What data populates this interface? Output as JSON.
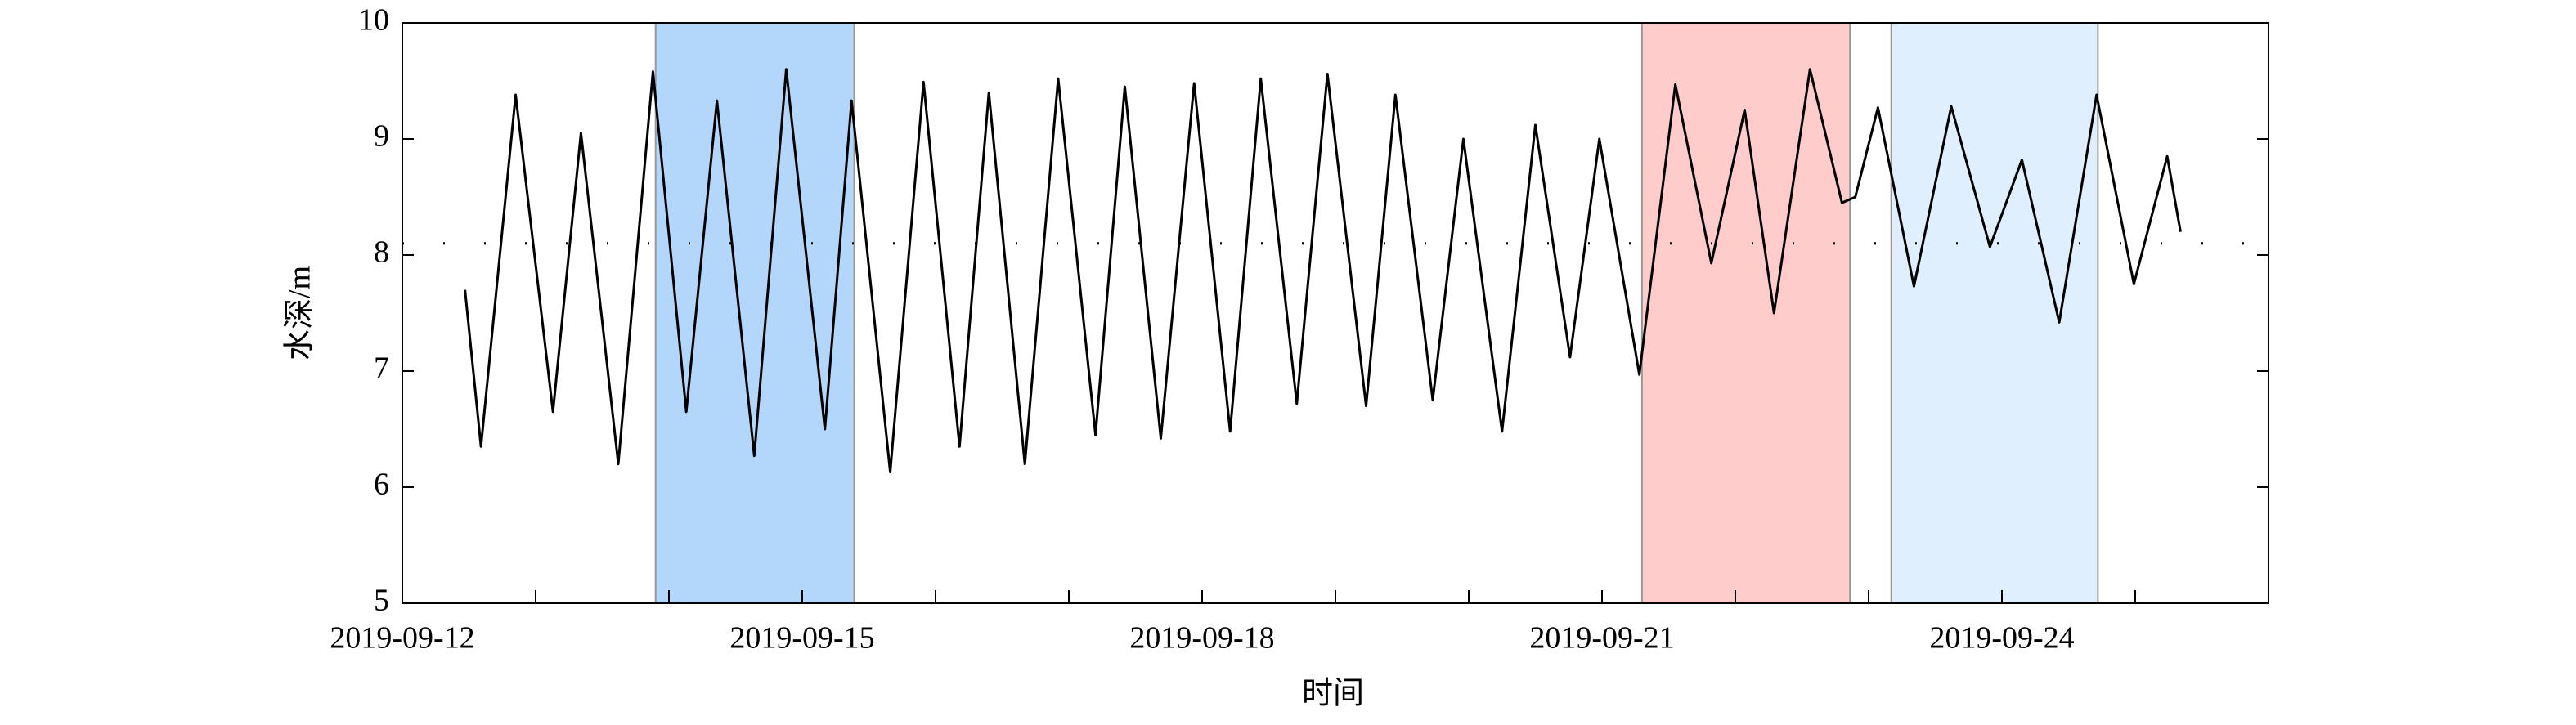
{
  "chart_data": {
    "type": "line",
    "y_label": "水深/m",
    "x_label": "时间",
    "x": [
      0.47,
      0.59,
      0.85,
      1.13,
      1.34,
      1.62,
      1.88,
      2.13,
      2.36,
      2.64,
      2.88,
      3.17,
      3.37,
      3.66,
      3.91,
      4.18,
      4.4,
      4.67,
      4.92,
      5.2,
      5.42,
      5.69,
      5.94,
      6.21,
      6.44,
      6.71,
      6.94,
      7.23,
      7.45,
      7.73,
      7.96,
      8.25,
      8.5,
      8.76,
      8.98,
      9.28,
      9.55,
      9.82,
      10.07,
      10.29,
      10.56,
      10.8,
      10.9,
      11.07,
      11.34,
      11.62,
      11.91,
      12.15,
      12.43,
      12.71,
      12.99,
      13.24,
      13.34
    ],
    "series": [
      {
        "name": "水深",
        "color": "#000000",
        "values": [
          7.7,
          6.35,
          9.38,
          6.65,
          9.05,
          6.2,
          9.58,
          6.65,
          9.33,
          6.27,
          9.6,
          6.5,
          9.33,
          6.13,
          9.49,
          6.35,
          9.4,
          6.2,
          9.52,
          6.45,
          9.45,
          6.42,
          9.48,
          6.48,
          9.52,
          6.72,
          9.56,
          6.7,
          9.38,
          6.75,
          9.0,
          6.48,
          9.12,
          7.12,
          9.0,
          6.97,
          9.47,
          7.93,
          9.25,
          7.5,
          9.6,
          8.45,
          8.5,
          9.27,
          7.73,
          9.28,
          8.07,
          8.82,
          7.42,
          9.38,
          7.75,
          8.85,
          8.2
        ]
      }
    ],
    "xlim": [
      0,
      14
    ],
    "xticks": [
      {
        "value": 0,
        "label": "2019-09-12"
      },
      {
        "value": 3,
        "label": "2019-09-15"
      },
      {
        "value": 6,
        "label": "2019-09-18"
      },
      {
        "value": 9,
        "label": "2019-09-21"
      },
      {
        "value": 12,
        "label": "2019-09-24"
      }
    ],
    "xminorticks": [
      1,
      2,
      4,
      5,
      7,
      8,
      10,
      11,
      13
    ],
    "ylim": [
      5,
      10
    ],
    "yticks": [
      5,
      6,
      7,
      8,
      9,
      10
    ],
    "reference_line": 8.1,
    "shaded_regions": [
      {
        "xmin": 1.9,
        "xmax": 3.39,
        "color": "#b3d7fa"
      },
      {
        "xmin": 9.3,
        "xmax": 10.86,
        "color": "#ffcccc"
      },
      {
        "xmin": 11.17,
        "xmax": 12.72,
        "color": "#e0effd"
      }
    ]
  }
}
